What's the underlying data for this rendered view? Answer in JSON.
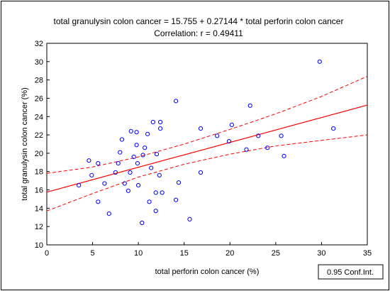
{
  "chart_data": {
    "type": "scatter",
    "title_lines": [
      "total granulysin colon cancer = 15.755 + 0.27144 * total perforin colon cancer",
      "Correlation: r = 0.49411"
    ],
    "xlabel": "total perforin colon cancer (%)",
    "ylabel": "total granulysin colon cancer (%)",
    "xlim": [
      0,
      35
    ],
    "ylim": [
      10,
      32
    ],
    "xticks": [
      0,
      5,
      10,
      15,
      20,
      25,
      30,
      35
    ],
    "yticks": [
      10,
      12,
      14,
      16,
      18,
      20,
      22,
      24,
      26,
      28,
      30,
      32
    ],
    "grid": false,
    "legend": {
      "text": "0.95 Conf.Int.",
      "placement": "bottom-right"
    },
    "colors": {
      "points": "#0000ff",
      "fit_line": "#ff0000",
      "conf_band": "#ff0000"
    },
    "regression": {
      "intercept": 15.755,
      "slope": 0.27144,
      "r": 0.49411
    },
    "confidence_band": {
      "x": [
        0,
        5,
        10,
        15,
        20,
        25,
        30,
        35
      ],
      "upper": [
        17.8,
        18.5,
        19.6,
        21.0,
        22.6,
        24.3,
        26.2,
        28.4
      ],
      "lower": [
        13.7,
        15.6,
        17.4,
        18.8,
        19.9,
        20.8,
        21.4,
        22.0
      ]
    },
    "points": [
      {
        "x": 3.5,
        "y": 16.5
      },
      {
        "x": 4.6,
        "y": 19.2
      },
      {
        "x": 4.9,
        "y": 17.6
      },
      {
        "x": 5.6,
        "y": 18.9
      },
      {
        "x": 5.6,
        "y": 14.7
      },
      {
        "x": 6.3,
        "y": 16.7
      },
      {
        "x": 6.8,
        "y": 13.4
      },
      {
        "x": 7.5,
        "y": 17.9
      },
      {
        "x": 7.8,
        "y": 18.9
      },
      {
        "x": 8.0,
        "y": 20.1
      },
      {
        "x": 8.2,
        "y": 21.5
      },
      {
        "x": 8.5,
        "y": 16.7
      },
      {
        "x": 8.9,
        "y": 15.9
      },
      {
        "x": 9.1,
        "y": 17.9
      },
      {
        "x": 9.2,
        "y": 22.4
      },
      {
        "x": 9.5,
        "y": 19.6
      },
      {
        "x": 9.8,
        "y": 22.3
      },
      {
        "x": 9.8,
        "y": 20.9
      },
      {
        "x": 9.9,
        "y": 18.9
      },
      {
        "x": 10.0,
        "y": 16.5
      },
      {
        "x": 10.4,
        "y": 12.4
      },
      {
        "x": 10.5,
        "y": 19.8
      },
      {
        "x": 10.7,
        "y": 20.6
      },
      {
        "x": 11.0,
        "y": 22.1
      },
      {
        "x": 11.2,
        "y": 14.7
      },
      {
        "x": 11.4,
        "y": 18.4
      },
      {
        "x": 11.6,
        "y": 23.4
      },
      {
        "x": 11.9,
        "y": 15.7
      },
      {
        "x": 11.9,
        "y": 13.7
      },
      {
        "x": 12.0,
        "y": 19.9
      },
      {
        "x": 12.3,
        "y": 17.6
      },
      {
        "x": 12.4,
        "y": 23.4
      },
      {
        "x": 12.4,
        "y": 22.7
      },
      {
        "x": 12.6,
        "y": 15.7
      },
      {
        "x": 14.1,
        "y": 25.7
      },
      {
        "x": 14.1,
        "y": 14.9
      },
      {
        "x": 14.4,
        "y": 16.8
      },
      {
        "x": 15.6,
        "y": 12.8
      },
      {
        "x": 16.8,
        "y": 22.7
      },
      {
        "x": 16.8,
        "y": 17.9
      },
      {
        "x": 18.6,
        "y": 21.9
      },
      {
        "x": 19.9,
        "y": 21.3
      },
      {
        "x": 20.2,
        "y": 23.1
      },
      {
        "x": 21.8,
        "y": 20.4
      },
      {
        "x": 22.2,
        "y": 25.2
      },
      {
        "x": 23.1,
        "y": 21.9
      },
      {
        "x": 24.1,
        "y": 20.6
      },
      {
        "x": 25.6,
        "y": 21.9
      },
      {
        "x": 25.9,
        "y": 19.7
      },
      {
        "x": 29.8,
        "y": 30.0
      },
      {
        "x": 31.3,
        "y": 22.7
      }
    ]
  }
}
